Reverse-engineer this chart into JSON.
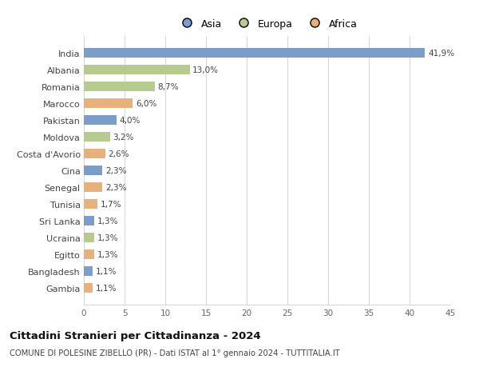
{
  "countries": [
    "India",
    "Albania",
    "Romania",
    "Marocco",
    "Pakistan",
    "Moldova",
    "Costa d'Avorio",
    "Cina",
    "Senegal",
    "Tunisia",
    "Sri Lanka",
    "Ucraina",
    "Egitto",
    "Bangladesh",
    "Gambia"
  ],
  "values": [
    41.9,
    13.0,
    8.7,
    6.0,
    4.0,
    3.2,
    2.6,
    2.3,
    2.3,
    1.7,
    1.3,
    1.3,
    1.3,
    1.1,
    1.1
  ],
  "labels": [
    "41,9%",
    "13,0%",
    "8,7%",
    "6,0%",
    "4,0%",
    "3,2%",
    "2,6%",
    "2,3%",
    "2,3%",
    "1,7%",
    "1,3%",
    "1,3%",
    "1,3%",
    "1,1%",
    "1,1%"
  ],
  "continents": [
    "Asia",
    "Europa",
    "Europa",
    "Africa",
    "Asia",
    "Europa",
    "Africa",
    "Asia",
    "Africa",
    "Africa",
    "Asia",
    "Europa",
    "Africa",
    "Asia",
    "Africa"
  ],
  "colors": {
    "Asia": "#7b9dc9",
    "Europa": "#b8cb8e",
    "Africa": "#e8b07a"
  },
  "xlim": [
    0,
    45
  ],
  "xticks": [
    0,
    5,
    10,
    15,
    20,
    25,
    30,
    35,
    40,
    45
  ],
  "title": "Cittadini Stranieri per Cittadinanza - 2024",
  "subtitle": "COMUNE DI POLESINE ZIBELLO (PR) - Dati ISTAT al 1° gennaio 2024 - TUTTITALIA.IT",
  "background_color": "#ffffff",
  "grid_color": "#d8d8d8",
  "bar_height": 0.55
}
